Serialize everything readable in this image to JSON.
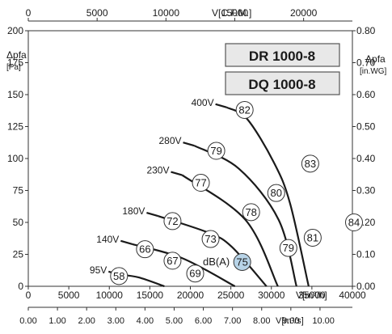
{
  "chart_data": {
    "type": "line",
    "models": [
      "DR 1000-8",
      "DQ 1000-8"
    ],
    "axes": {
      "bottom_primary": {
        "label": "V[m³/h]",
        "range": [
          0,
          40000
        ],
        "ticks": [
          "0",
          "5000",
          "10000",
          "15000",
          "20000",
          "25000",
          "30000",
          "35000",
          "40000"
        ]
      },
      "bottom_secondary": {
        "label": "V[m³/s]",
        "range": [
          0,
          11.11
        ],
        "ticks": [
          "0.00",
          "1.00",
          "2.00",
          "3.00",
          "4.00",
          "5.00",
          "6.00",
          "7.00",
          "8.00",
          "9.00",
          "10.00"
        ]
      },
      "top": {
        "label": "V[C.F.M.]",
        "range": [
          0,
          23544
        ],
        "ticks": [
          "0",
          "5000",
          "10000",
          "15000",
          "20000"
        ]
      },
      "left": {
        "label": "Δpfa",
        "unit": "[Pa]",
        "range": [
          0,
          200
        ],
        "ticks": [
          "0",
          "25",
          "50",
          "75",
          "100",
          "125",
          "150",
          "175",
          "200"
        ]
      },
      "right": {
        "label": "Δpfa",
        "unit": "[in.WG]",
        "range": [
          0,
          0.8032
        ],
        "ticks": [
          "0.00",
          "0.10",
          "0.20",
          "0.30",
          "0.40",
          "0.50",
          "0.60",
          "0.70",
          "0.80"
        ]
      }
    },
    "grid": false,
    "noise_unit": "dB(A)",
    "series": [
      {
        "name": "400V",
        "points": [
          [
            24500,
            140
          ],
          [
            27000,
            131
          ],
          [
            30300,
            97
          ],
          [
            32300,
            65
          ],
          [
            34600,
            0
          ]
        ]
      },
      {
        "name": "280V",
        "points": [
          [
            20500,
            110
          ],
          [
            26000,
            92
          ],
          [
            30900,
            52
          ],
          [
            33100,
            0
          ]
        ]
      },
      {
        "name": "230V",
        "points": [
          [
            19000,
            87
          ],
          [
            26800,
            52
          ],
          [
            30800,
            0
          ]
        ]
      },
      {
        "name": "180V",
        "points": [
          [
            16000,
            55
          ],
          [
            22200,
            42
          ],
          [
            25100,
            31
          ],
          [
            29400,
            0
          ]
        ]
      },
      {
        "name": "140V",
        "points": [
          [
            12800,
            33
          ],
          [
            19000,
            22
          ],
          [
            25500,
            0
          ]
        ]
      },
      {
        "name": "95V",
        "points": [
          [
            11300,
            9
          ],
          [
            13600,
            7
          ],
          [
            16800,
            0
          ]
        ]
      }
    ],
    "sound_markers": [
      {
        "value": "82",
        "x": 26700,
        "y": 138
      },
      {
        "value": "83",
        "x": 34800,
        "y": 96
      },
      {
        "value": "84",
        "x": 40200,
        "y": 50
      },
      {
        "value": "79",
        "x": 23200,
        "y": 106
      },
      {
        "value": "80",
        "x": 30600,
        "y": 73
      },
      {
        "value": "81",
        "x": 35100,
        "y": 38
      },
      {
        "value": "77",
        "x": 21300,
        "y": 81
      },
      {
        "value": "78",
        "x": 27500,
        "y": 58
      },
      {
        "value": "79",
        "x": 32100,
        "y": 30
      },
      {
        "value": "72",
        "x": 17800,
        "y": 51
      },
      {
        "value": "73",
        "x": 22500,
        "y": 37
      },
      {
        "value": "75",
        "x": 26400,
        "y": 19,
        "highlight": true
      },
      {
        "value": "66",
        "x": 14400,
        "y": 29
      },
      {
        "value": "67",
        "x": 17800,
        "y": 20
      },
      {
        "value": "69",
        "x": 20600,
        "y": 10
      },
      {
        "value": "58",
        "x": 11200,
        "y": 8
      }
    ],
    "colors": {
      "curve": "#1a1a1a",
      "marker_fill": "#ffffff",
      "marker_highlight": "#b8d4e8",
      "model_box": "#e8e8e8"
    }
  }
}
